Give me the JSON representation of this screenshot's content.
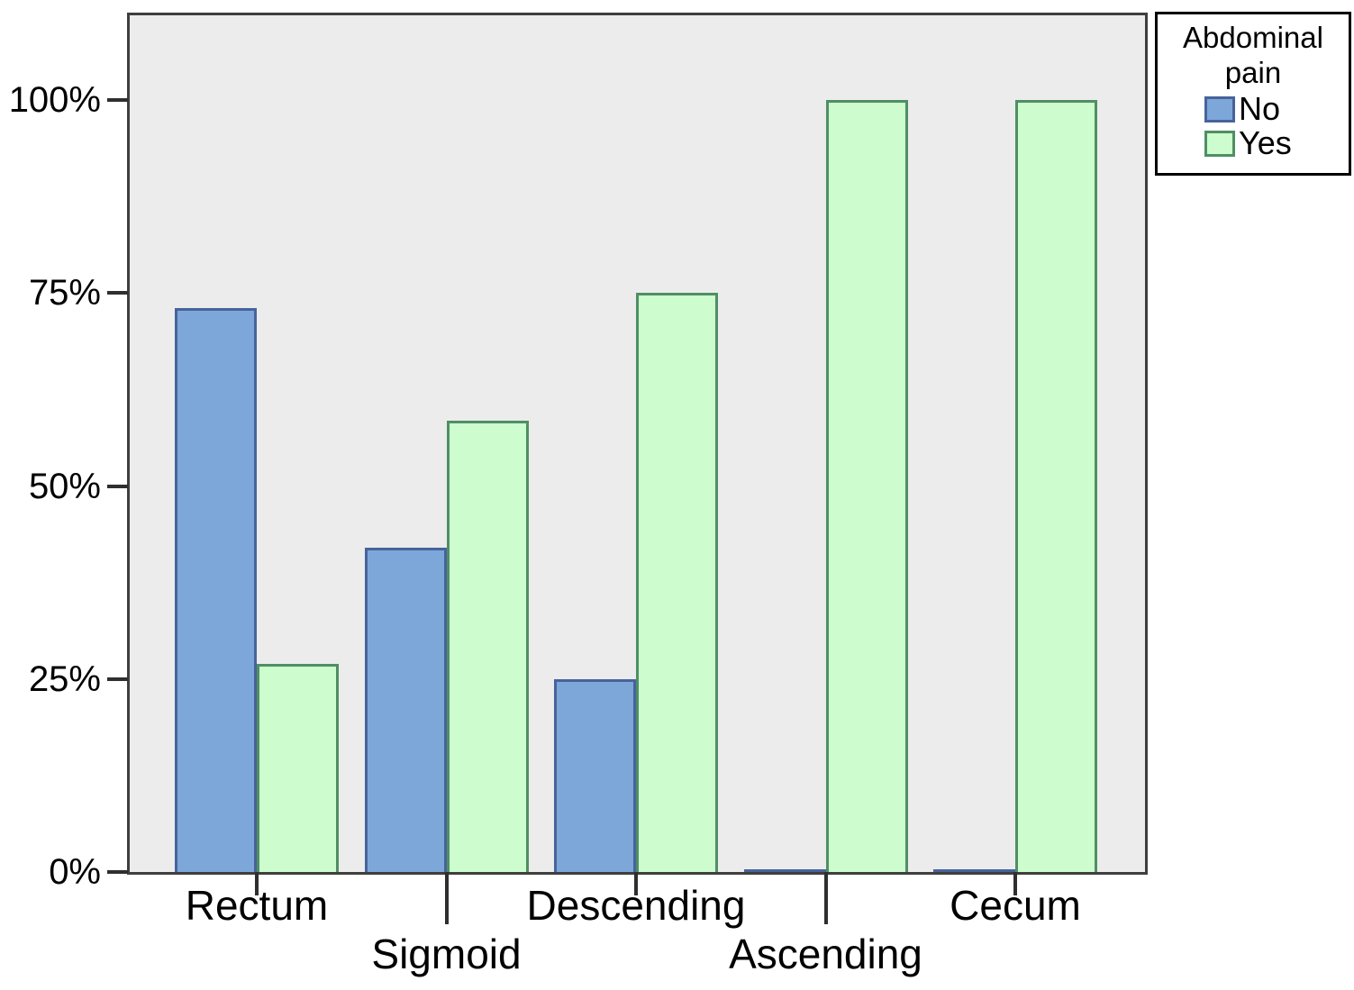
{
  "chart_data": {
    "type": "bar",
    "title": "",
    "xlabel": "",
    "ylabel": "",
    "categories": [
      "Rectum",
      "Sigmoid",
      "Descending",
      "Ascending",
      "Cecum"
    ],
    "series": [
      {
        "name": "No",
        "color": "#7DA7D8",
        "border_color": "#47639C",
        "values": [
          73,
          42,
          25,
          0,
          0
        ]
      },
      {
        "name": "Yes",
        "color": "#CDFCCF",
        "border_color": "#4F8F63",
        "values": [
          27,
          58.5,
          75,
          100,
          100
        ]
      }
    ],
    "y_ticks": [
      {
        "label": "0%",
        "value": 0
      },
      {
        "label": "25%",
        "value": 25
      },
      {
        "label": "50%",
        "value": 50
      },
      {
        "label": "75%",
        "value": 75
      },
      {
        "label": "100%",
        "value": 100
      }
    ],
    "ylim": [
      0,
      111
    ],
    "grid": false,
    "legend_position": "outside-top-right",
    "plot_background": "#ececec",
    "frame_color": "#3e3e3e"
  },
  "legend": {
    "title": "Abdominal pain",
    "items": [
      {
        "label": "No"
      },
      {
        "label": "Yes"
      }
    ]
  }
}
